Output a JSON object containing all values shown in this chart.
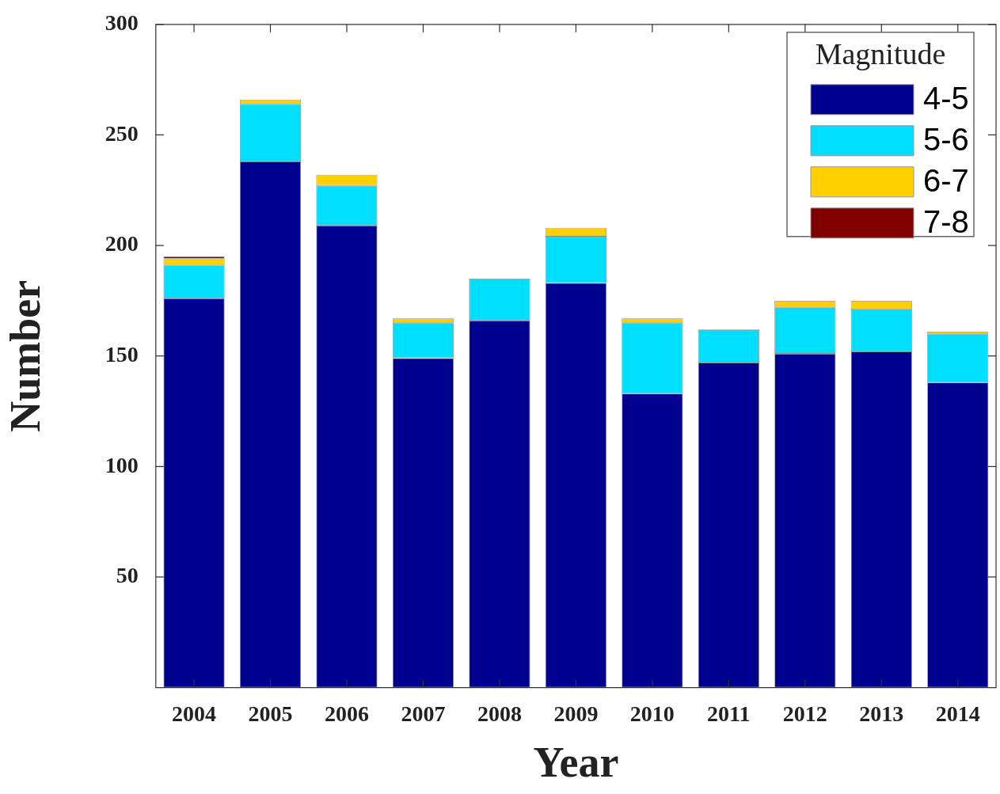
{
  "chart_data": {
    "type": "bar",
    "stacked": true,
    "xlabel": "Year",
    "ylabel": "Number",
    "legend_title": "Magnitude",
    "legend": "top right",
    "grid": false,
    "categories": [
      "2004",
      "2005",
      "2006",
      "2007",
      "2008",
      "2009",
      "2010",
      "2011",
      "2012",
      "2013",
      "2014"
    ],
    "ylim": [
      0,
      300
    ],
    "yticks": [
      50,
      100,
      150,
      200,
      250,
      300
    ],
    "series": [
      {
        "name": "4-5",
        "color": "#00008f",
        "values": [
          176,
          238,
          209,
          149,
          166,
          183,
          133,
          147,
          151,
          152,
          138
        ]
      },
      {
        "name": "5-6",
        "color": "#00dfff",
        "values": [
          15,
          26,
          18,
          16,
          19,
          21,
          32,
          15,
          21,
          19,
          22
        ]
      },
      {
        "name": "6-7",
        "color": "#ffd000",
        "values": [
          3,
          2,
          5,
          2,
          0,
          4,
          2,
          0,
          3,
          4,
          1
        ]
      },
      {
        "name": "7-8",
        "color": "#800000",
        "values": [
          1,
          0,
          0,
          0,
          0,
          0,
          0,
          0,
          0,
          0,
          0
        ]
      }
    ]
  }
}
